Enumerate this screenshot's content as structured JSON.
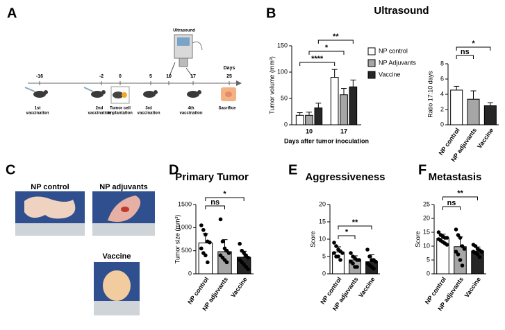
{
  "panel_labels": [
    "A",
    "B",
    "C",
    "D",
    "E",
    "F"
  ],
  "timeline": {
    "days": [
      -16,
      -2,
      0,
      5,
      10,
      17,
      25
    ],
    "axis_label": "Days",
    "device": "Ultrasound",
    "events": [
      {
        "label": [
          "1st",
          "vaccination"
        ]
      },
      {
        "label": [
          "2nd",
          "vaccination"
        ]
      },
      {
        "label": [
          "Tumor cell",
          "implantation"
        ]
      },
      {
        "label": [
          "3rd",
          "vaccination"
        ]
      },
      {
        "label": [
          "4th",
          "vaccination"
        ]
      },
      {
        "label": [
          "Sacrifice"
        ]
      }
    ]
  },
  "photos": {
    "labels": [
      "NP control",
      "NP adjuvants",
      "Vaccine"
    ]
  },
  "chart_data": [
    {
      "type": "bar",
      "title": "Ultrasound",
      "y_label": "Tumor volume (mm³)",
      "x_label": "Days after tumor inoculation",
      "categories": [
        "10",
        "17"
      ],
      "series": [
        {
          "name": "NP control",
          "color": "#ffffff",
          "values": [
            18,
            90
          ],
          "errors": [
            5,
            15
          ]
        },
        {
          "name": "NP Adjuvants",
          "color": "#a6a6a6",
          "values": [
            18,
            57
          ],
          "errors": [
            6,
            12
          ]
        },
        {
          "name": "Vaccine",
          "color": "#262626",
          "values": [
            32,
            72
          ],
          "errors": [
            9,
            13
          ]
        }
      ],
      "ylim": [
        0,
        150
      ],
      "yticks": [
        0,
        50,
        100,
        150
      ],
      "annotations": [
        "****",
        "*",
        "**"
      ],
      "legend": "right"
    },
    {
      "type": "bar",
      "y_label": "Ratio 17:10 days",
      "categories": [
        "NP control",
        "NP adjuvants",
        "Vaccine"
      ],
      "values": [
        4.55,
        3.35,
        2.5
      ],
      "errors": [
        0.5,
        1.1,
        0.4
      ],
      "colors": [
        "#ffffff",
        "#a6a6a6",
        "#262626"
      ],
      "ylim": [
        0,
        8
      ],
      "yticks": [
        0,
        2,
        4,
        6,
        8
      ],
      "annotations": [
        "ns",
        "*"
      ]
    },
    {
      "type": "bar",
      "title": "Primary Tumor",
      "y_label": "Tumor size (mm³)",
      "categories": [
        "NP control",
        "NP adjuvants",
        "Vaccine"
      ],
      "values": [
        670,
        480,
        360
      ],
      "errors": [
        200,
        260,
        130
      ],
      "colors": [
        "#ffffff",
        "#a6a6a6",
        "#262626"
      ],
      "points": [
        [
          1050,
          950,
          850,
          700,
          680,
          550,
          450,
          400,
          250
        ],
        [
          1180,
          700,
          550,
          500,
          450,
          400,
          350,
          300,
          250
        ],
        [
          650,
          500,
          450,
          400,
          350,
          300,
          250,
          200,
          150,
          100
        ]
      ],
      "ylim": [
        0,
        1500
      ],
      "yticks": [
        0,
        500,
        1000,
        1500
      ],
      "annotations": [
        "ns",
        "*"
      ]
    },
    {
      "type": "bar",
      "title": "Aggressiveness",
      "y_label": "Score",
      "categories": [
        "NP control",
        "NP adjuvants",
        "Vaccine"
      ],
      "values": [
        6.3,
        4,
        3.5
      ],
      "errors": [
        1.5,
        1.2,
        2
      ],
      "colors": [
        "#ffffff",
        "#a6a6a6",
        "#262626"
      ],
      "points": [
        [
          9,
          8,
          7,
          6.5,
          6,
          6,
          5,
          5,
          4
        ],
        [
          6,
          5,
          4.5,
          4,
          4,
          3.5,
          3,
          2,
          2
        ],
        [
          7,
          5,
          4,
          4,
          3.5,
          3,
          2.5,
          2,
          1.5
        ]
      ],
      "ylim": [
        0,
        20
      ],
      "yticks": [
        0,
        5,
        10,
        15,
        20
      ],
      "annotations": [
        "*",
        "**"
      ]
    },
    {
      "type": "bar",
      "title": "Metastasis",
      "y_label": "Score",
      "categories": [
        "NP control",
        "NP adjuvants",
        "Vaccine"
      ],
      "values": [
        12.8,
        9.8,
        8.2
      ],
      "errors": [
        1.5,
        3.5,
        1.5
      ],
      "colors": [
        "#ffffff",
        "#a6a6a6",
        "#262626"
      ],
      "points": [
        [
          15,
          14,
          13.5,
          13,
          13,
          12.5,
          12,
          11.5,
          11,
          10.5
        ],
        [
          16,
          14,
          13,
          10,
          9,
          8,
          7,
          5,
          3
        ],
        [
          10.5,
          10,
          9,
          8.5,
          8,
          8,
          7.5,
          7,
          6
        ]
      ],
      "ylim": [
        0,
        25
      ],
      "yticks": [
        0,
        5,
        10,
        15,
        20,
        25
      ],
      "annotations": [
        "ns",
        "**"
      ]
    }
  ]
}
